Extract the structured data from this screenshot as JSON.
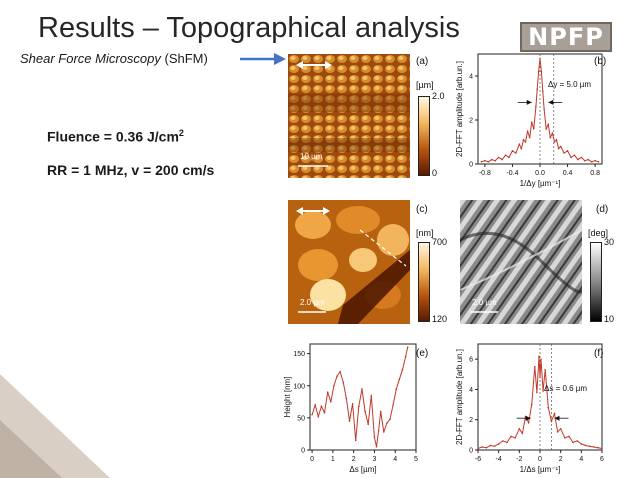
{
  "slide": {
    "title": "Results – Topographical analysis",
    "subtitle_italic": "Shear Force Microscopy",
    "subtitle_plain": " (ShFM)",
    "fluence_prefix": "Fluence = 0.36 J/cm",
    "fluence_exp": "2",
    "rr_text": "RR = 1 MHz, v = 200 cm/s",
    "logo_text": "NPFP"
  },
  "panels": {
    "a": {
      "label": "(a)",
      "unit": "[µm]",
      "cbar_max": "2.0",
      "cbar_min": "0",
      "scale_label": "10 µm"
    },
    "b": {
      "label": "(b)",
      "annotation": "Δy = 5.0 µm"
    },
    "c": {
      "label": "(c)",
      "unit": "[nm]",
      "cbar_max": "700",
      "cbar_min": "120",
      "scale_label": "2.0 µm"
    },
    "d": {
      "label": "(d)",
      "unit": "[deg]",
      "cbar_max": "30",
      "cbar_min": "10",
      "scale_label": "2.0 µm"
    },
    "e": {
      "label": "(e)"
    },
    "f": {
      "label": "(f)",
      "annotation": "Δs = 0.6 µm"
    }
  },
  "chart_data": [
    {
      "id": "b",
      "type": "line",
      "xlabel": "1/Δy  [µm⁻¹]",
      "ylabel": "2D-FFT  amplitude  [arb.un.]",
      "xlim": [
        -0.9,
        0.9
      ],
      "ylim": [
        0,
        5
      ],
      "xticks": [
        "-0.8",
        "-0.4",
        "0.0",
        "0.4",
        "0.8"
      ],
      "yticks": [
        "0",
        "2",
        "4"
      ],
      "x": [
        -0.85,
        -0.8,
        -0.75,
        -0.7,
        -0.65,
        -0.6,
        -0.55,
        -0.5,
        -0.45,
        -0.4,
        -0.35,
        -0.3,
        -0.27,
        -0.24,
        -0.21,
        -0.18,
        -0.15,
        -0.12,
        -0.09,
        -0.06,
        -0.04,
        -0.02,
        0.0,
        0.02,
        0.04,
        0.06,
        0.09,
        0.12,
        0.15,
        0.18,
        0.21,
        0.24,
        0.27,
        0.3,
        0.35,
        0.4,
        0.45,
        0.5,
        0.55,
        0.6,
        0.65,
        0.7,
        0.75,
        0.8,
        0.85
      ],
      "values": [
        0.1,
        0.15,
        0.1,
        0.2,
        0.15,
        0.3,
        0.2,
        0.4,
        0.3,
        0.6,
        0.5,
        0.9,
        0.7,
        1.1,
        1.0,
        1.5,
        1.2,
        1.9,
        1.6,
        2.6,
        3.4,
        4.2,
        4.8,
        4.2,
        3.3,
        2.5,
        1.6,
        1.8,
        1.2,
        1.4,
        1.0,
        1.1,
        0.7,
        0.8,
        0.5,
        0.6,
        0.3,
        0.4,
        0.2,
        0.3,
        0.15,
        0.2,
        0.1,
        0.15,
        0.1
      ]
    },
    {
      "id": "e",
      "type": "line",
      "xlabel": "Δs  [µm]",
      "ylabel": "Height  [nm]",
      "xlim": [
        -0.1,
        5
      ],
      "ylim": [
        0,
        165
      ],
      "xticks": [
        "0",
        "1",
        "2",
        "3",
        "4",
        "5"
      ],
      "yticks": [
        "0",
        "50",
        "100",
        "150"
      ],
      "x": [
        0,
        0.15,
        0.3,
        0.45,
        0.6,
        0.75,
        0.9,
        1.05,
        1.2,
        1.35,
        1.5,
        1.65,
        1.8,
        1.95,
        2.1,
        2.25,
        2.4,
        2.55,
        2.7,
        2.85,
        3.0,
        3.1,
        3.2,
        3.3,
        3.45,
        3.6,
        3.75,
        3.9,
        4.05,
        4.2,
        4.35,
        4.5,
        4.6
      ],
      "values": [
        55,
        70,
        52,
        68,
        58,
        90,
        75,
        100,
        115,
        122,
        105,
        80,
        45,
        72,
        15,
        68,
        95,
        60,
        40,
        85,
        20,
        5,
        30,
        60,
        28,
        42,
        48,
        70,
        95,
        110,
        125,
        145,
        160
      ]
    },
    {
      "id": "f",
      "type": "line",
      "xlabel": "1/Δs  [µm⁻¹]",
      "ylabel": "2D-FFT  amplitude  [arb.un.]",
      "xlim": [
        -6,
        6
      ],
      "ylim": [
        0,
        7
      ],
      "xticks": [
        "-6",
        "-4",
        "-2",
        "0",
        "2",
        "4",
        "6"
      ],
      "yticks": [
        "0",
        "2",
        "4",
        "6"
      ],
      "x": [
        -6,
        -5.6,
        -5.2,
        -4.8,
        -4.4,
        -4,
        -3.6,
        -3.2,
        -2.8,
        -2.4,
        -2,
        -1.7,
        -1.4,
        -1.1,
        -0.8,
        -0.5,
        -0.3,
        -0.1,
        0,
        0.1,
        0.3,
        0.5,
        0.8,
        1.1,
        1.4,
        1.7,
        2,
        2.4,
        2.8,
        3.2,
        3.6,
        4,
        4.4,
        4.8,
        5.2,
        5.6,
        6
      ],
      "values": [
        0.1,
        0.2,
        0.15,
        0.3,
        0.25,
        0.4,
        0.6,
        0.5,
        0.9,
        0.8,
        1.4,
        1.1,
        2.2,
        1.8,
        3.0,
        5.5,
        3.8,
        6.2,
        4.8,
        6.0,
        3.9,
        5.3,
        2.8,
        1.9,
        2.4,
        1.2,
        1.4,
        0.8,
        0.9,
        0.5,
        0.6,
        0.4,
        0.3,
        0.25,
        0.2,
        0.15,
        0.1
      ]
    }
  ]
}
